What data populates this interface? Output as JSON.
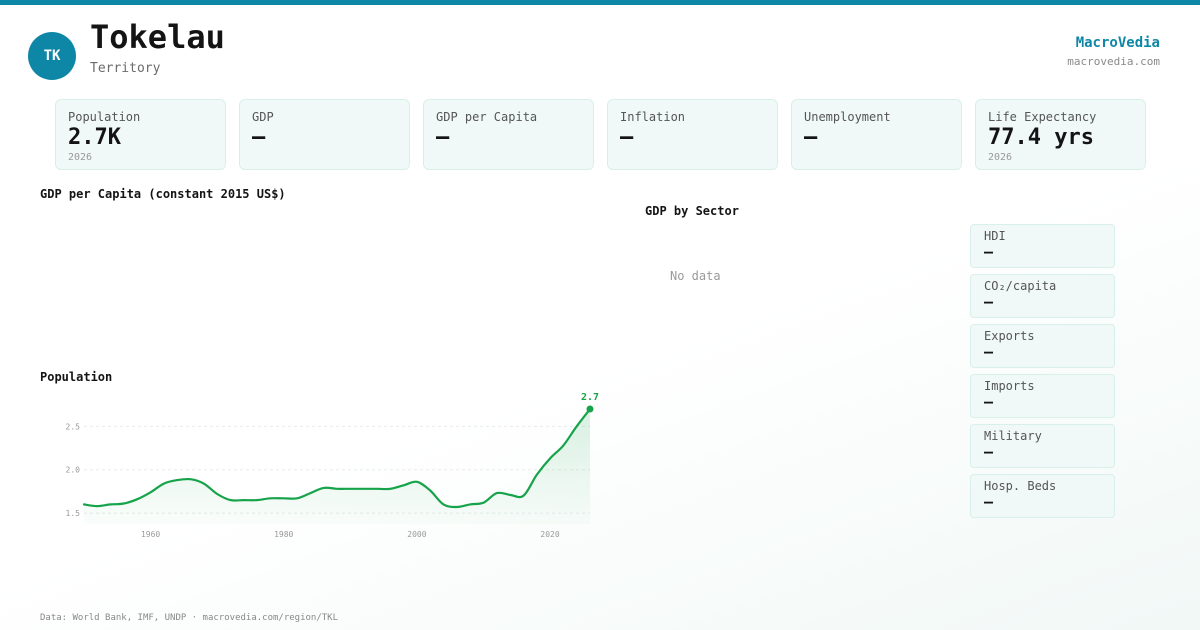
{
  "header": {
    "avatar": "TK",
    "title": "Tokelau",
    "subtitle": "Territory",
    "brand": "MacroVedia",
    "brand_url": "macrovedia.com"
  },
  "colors": {
    "accent": "#0e87a6",
    "line": "#16a34a",
    "card_bg": "#f0f9f7"
  },
  "stats": [
    {
      "label": "Population",
      "value": "2.7K",
      "year": "2026"
    },
    {
      "label": "GDP",
      "value": "—",
      "year": ""
    },
    {
      "label": "GDP per Capita",
      "value": "—",
      "year": ""
    },
    {
      "label": "Inflation",
      "value": "—",
      "year": ""
    },
    {
      "label": "Unemployment",
      "value": "—",
      "year": ""
    },
    {
      "label": "Life Expectancy",
      "value": "77.4 yrs",
      "year": "2026"
    }
  ],
  "sections": {
    "gdp_per_capita": "GDP per Capita (constant 2015 US$)",
    "gdp_by_sector": "GDP by Sector",
    "gdp_by_sector_empty": "No data",
    "population": "Population"
  },
  "side_stats": [
    {
      "label": "HDI",
      "value": "—"
    },
    {
      "label": "CO₂/capita",
      "value": "—"
    },
    {
      "label": "Exports",
      "value": "—"
    },
    {
      "label": "Imports",
      "value": "—"
    },
    {
      "label": "Military",
      "value": "—"
    },
    {
      "label": "Hosp. Beds",
      "value": "—"
    }
  ],
  "chart_data": {
    "type": "area",
    "title": "Population",
    "xlabel": "",
    "ylabel": "",
    "xlim": [
      1950,
      2026
    ],
    "ylim": [
      1.4,
      2.7
    ],
    "xticks": [
      1960,
      1980,
      2000,
      2020
    ],
    "yticks": [
      1.5,
      2.0,
      2.5
    ],
    "grid": true,
    "end_label": "2.7",
    "series": [
      {
        "x": [
          1950,
          1952,
          1954,
          1956,
          1958,
          1960,
          1962,
          1964,
          1966,
          1968,
          1970,
          1972,
          1974,
          1976,
          1978,
          1980,
          1982,
          1984,
          1986,
          1988,
          1990,
          1992,
          1994,
          1996,
          1998,
          2000,
          2002,
          2004,
          2006,
          2008,
          2010,
          2012,
          2014,
          2016,
          2018,
          2020,
          2022,
          2024,
          2026
        ],
        "values": [
          1.6,
          1.58,
          1.6,
          1.61,
          1.66,
          1.74,
          1.84,
          1.88,
          1.89,
          1.84,
          1.72,
          1.65,
          1.65,
          1.65,
          1.67,
          1.67,
          1.67,
          1.73,
          1.79,
          1.78,
          1.78,
          1.78,
          1.78,
          1.78,
          1.82,
          1.86,
          1.76,
          1.6,
          1.57,
          1.6,
          1.62,
          1.73,
          1.71,
          1.7,
          1.94,
          2.13,
          2.28,
          2.5,
          2.7
        ]
      }
    ]
  },
  "footer": "Data: World Bank, IMF, UNDP · macrovedia.com/region/TKL"
}
